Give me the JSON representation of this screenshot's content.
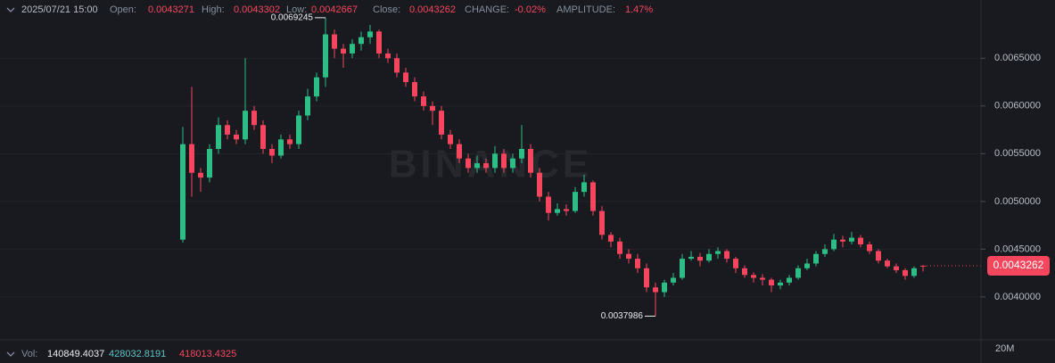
{
  "header": {
    "date": "2025/07/21 15:00",
    "open_label": "Open:",
    "open": "0.0043271",
    "high_label": "High:",
    "high": "0.0043302",
    "low_label": "Low:",
    "low": "0.0042667",
    "close_label": "Close:",
    "close": "0.0043262",
    "change_label": "CHANGE:",
    "change": "-0.02%",
    "amplitude_label": "AMPLITUDE:",
    "amplitude": "1.47%"
  },
  "volume": {
    "label": "Vol:",
    "values": [
      140849.4037,
      428032.8191,
      418013.4325
    ],
    "axis_label": "20M"
  },
  "chart_data": {
    "type": "candlestick",
    "watermark": "BINANCE",
    "up_color": "#2ebd85",
    "down_color": "#f6465d",
    "grid": true,
    "ylim": [
      0.00356,
      0.00711
    ],
    "yticks": [
      {
        "value": 0.004,
        "label": "0.0040000"
      },
      {
        "value": 0.0045,
        "label": "0.0045000"
      },
      {
        "value": 0.005,
        "label": "0.0050000"
      },
      {
        "value": 0.0055,
        "label": "0.0055000"
      },
      {
        "value": 0.006,
        "label": "0.0060000"
      },
      {
        "value": 0.0065,
        "label": "0.0065000"
      }
    ],
    "high_marker": 0.0069245,
    "low_marker": 0.0037986,
    "price_tag": 0.0043262,
    "open": [
      0.0046,
      0.0056,
      0.0053,
      0.00525,
      0.00555,
      0.0058,
      0.0057,
      0.00565,
      0.00595,
      0.0058,
      0.00555,
      0.00548,
      0.00565,
      0.0056,
      0.0059,
      0.0061,
      0.0063,
      0.00675,
      0.0066,
      0.00655,
      0.00665,
      0.00672,
      0.00678,
      0.00655,
      0.0065,
      0.00635,
      0.00625,
      0.0061,
      0.006,
      0.00595,
      0.0057,
      0.0056,
      0.00545,
      0.00535,
      0.0054,
      0.00535,
      0.0055,
      0.00535,
      0.00545,
      0.00555,
      0.0053,
      0.00505,
      0.00488,
      0.00492,
      0.0049,
      0.0051,
      0.0052,
      0.0049,
      0.00465,
      0.00458,
      0.00445,
      0.0044,
      0.0043,
      0.0041,
      0.00405,
      0.00415,
      0.0042,
      0.0044,
      0.00442,
      0.00438,
      0.00445,
      0.00448,
      0.0044,
      0.0043,
      0.00423,
      0.0042,
      0.00418,
      0.00412,
      0.00415,
      0.0042,
      0.0043,
      0.00435,
      0.00445,
      0.0045,
      0.0046,
      0.00458,
      0.00462,
      0.00455,
      0.00448,
      0.00438,
      0.00432,
      0.00428,
      0.00422,
      0.0043271
    ],
    "high": [
      0.00578,
      0.0062,
      0.00535,
      0.0056,
      0.00588,
      0.00585,
      0.00575,
      0.0065,
      0.006,
      0.00585,
      0.0056,
      0.0057,
      0.0057,
      0.00595,
      0.00618,
      0.00635,
      0.0069245,
      0.0068,
      0.00665,
      0.0067,
      0.00678,
      0.00685,
      0.0068,
      0.0066,
      0.00655,
      0.0064,
      0.0063,
      0.00615,
      0.00605,
      0.006,
      0.00575,
      0.00565,
      0.0055,
      0.00548,
      0.00545,
      0.00558,
      0.00555,
      0.0055,
      0.0058,
      0.0056,
      0.00535,
      0.0051,
      0.00498,
      0.00497,
      0.00515,
      0.00528,
      0.00522,
      0.00495,
      0.00468,
      0.00462,
      0.0045,
      0.00445,
      0.00435,
      0.00415,
      0.00418,
      0.00425,
      0.00445,
      0.00448,
      0.00446,
      0.0045,
      0.00452,
      0.0045,
      0.00442,
      0.00433,
      0.00426,
      0.00424,
      0.0042,
      0.00418,
      0.00423,
      0.00433,
      0.0044,
      0.00448,
      0.00455,
      0.00466,
      0.00464,
      0.00468,
      0.00465,
      0.00458,
      0.0045,
      0.0044,
      0.00435,
      0.0043,
      0.00432,
      0.0043302
    ],
    "low": [
      0.00457,
      0.00505,
      0.0051,
      0.0052,
      0.0055,
      0.00565,
      0.0056,
      0.0056,
      0.00575,
      0.0055,
      0.0054,
      0.00545,
      0.00555,
      0.00555,
      0.00585,
      0.00605,
      0.0062,
      0.0065,
      0.0064,
      0.0065,
      0.00658,
      0.00665,
      0.0065,
      0.00645,
      0.0063,
      0.0062,
      0.00605,
      0.00595,
      0.0058,
      0.00565,
      0.00555,
      0.0054,
      0.0053,
      0.0053,
      0.0053,
      0.0053,
      0.0053,
      0.0053,
      0.0054,
      0.00525,
      0.005,
      0.0048,
      0.00485,
      0.00485,
      0.00488,
      0.00505,
      0.00485,
      0.0046,
      0.00452,
      0.0044,
      0.00435,
      0.00425,
      0.00405,
      0.0037986,
      0.004,
      0.00412,
      0.00418,
      0.00438,
      0.00432,
      0.00436,
      0.0044,
      0.00436,
      0.00425,
      0.0042,
      0.00415,
      0.00412,
      0.00405,
      0.00408,
      0.00412,
      0.00418,
      0.00428,
      0.00432,
      0.00442,
      0.00448,
      0.00452,
      0.00455,
      0.00452,
      0.00445,
      0.00435,
      0.0043,
      0.00425,
      0.00418,
      0.0042,
      0.0042667
    ],
    "close": [
      0.0056,
      0.0053,
      0.00525,
      0.00555,
      0.0058,
      0.0057,
      0.00565,
      0.00595,
      0.0058,
      0.00555,
      0.00548,
      0.00565,
      0.0056,
      0.0059,
      0.0061,
      0.0063,
      0.00675,
      0.0066,
      0.00655,
      0.00665,
      0.00672,
      0.00678,
      0.00655,
      0.0065,
      0.00635,
      0.00625,
      0.0061,
      0.006,
      0.00595,
      0.0057,
      0.0056,
      0.00545,
      0.00535,
      0.0054,
      0.00535,
      0.0055,
      0.00535,
      0.00545,
      0.00555,
      0.0053,
      0.00505,
      0.00488,
      0.00492,
      0.0049,
      0.0051,
      0.0052,
      0.0049,
      0.00465,
      0.00458,
      0.00445,
      0.0044,
      0.0043,
      0.0041,
      0.00405,
      0.00415,
      0.0042,
      0.0044,
      0.00442,
      0.00438,
      0.00445,
      0.00448,
      0.0044,
      0.0043,
      0.00423,
      0.0042,
      0.00418,
      0.00412,
      0.00415,
      0.0042,
      0.0043,
      0.00435,
      0.00445,
      0.0045,
      0.0046,
      0.00458,
      0.00462,
      0.00455,
      0.00448,
      0.00438,
      0.00432,
      0.00428,
      0.00422,
      0.0043,
      0.0043262
    ]
  }
}
